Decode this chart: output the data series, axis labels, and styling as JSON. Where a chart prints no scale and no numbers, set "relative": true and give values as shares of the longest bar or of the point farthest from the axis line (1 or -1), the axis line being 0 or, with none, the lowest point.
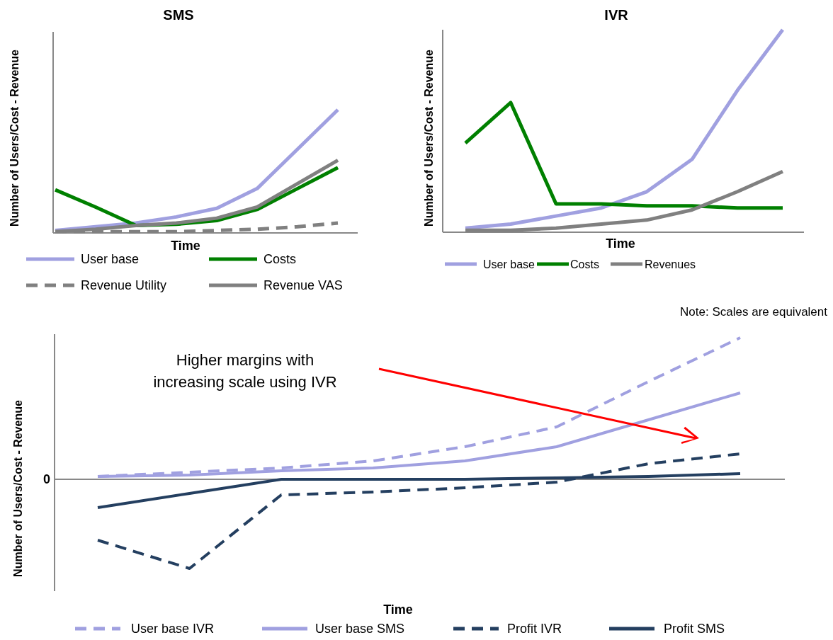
{
  "chart_data": [
    {
      "type": "line",
      "title": "SMS",
      "xlabel": "Time",
      "ylabel": "Number of Users/Cost - Revenue",
      "relative": true,
      "legend": "bottom",
      "categories": [
        null,
        null,
        null,
        null,
        null,
        null,
        null,
        null
      ],
      "series": [
        {
          "name": "User base",
          "color": "#a0a0e0",
          "values": [
            0.02,
            0.05,
            0.08,
            0.13,
            0.2,
            0.36,
            0.68,
            1
          ]
        },
        {
          "name": "Costs",
          "color": "#008000",
          "values": [
            0.35,
            0.21,
            0.06,
            0.07,
            0.1,
            0.19,
            0.36,
            0.53
          ]
        },
        {
          "name": "Revenue Utility",
          "color": "#808080",
          "line_style": "dashed",
          "values": [
            0.01,
            0.01,
            0.01,
            0.01,
            0.02,
            0.03,
            0.05,
            0.08
          ]
        },
        {
          "name": "Revenue VAS",
          "color": "#808080",
          "values": [
            0.01,
            0.03,
            0.06,
            0.08,
            0.12,
            0.21,
            0.4,
            0.59
          ]
        }
      ]
    },
    {
      "type": "line",
      "title": "IVR",
      "xlabel": "Time",
      "ylabel": "Number of Users/Cost - Revenue",
      "relative": true,
      "legend": "bottom",
      "categories": [
        null,
        null,
        null,
        null,
        null,
        null,
        null,
        null
      ],
      "series": [
        {
          "name": "User base",
          "color": "#a0a0e0",
          "values": [
            0.02,
            0.04,
            0.08,
            0.12,
            0.2,
            0.36,
            0.7,
            1
          ]
        },
        {
          "name": "Costs",
          "color": "#008000",
          "values": [
            0.44,
            0.64,
            0.14,
            0.14,
            0.13,
            0.13,
            0.12,
            0.12
          ]
        },
        {
          "name": "Revenues",
          "color": "#808080",
          "values": [
            0.01,
            0.01,
            0.02,
            0.04,
            0.06,
            0.11,
            0.2,
            0.3
          ]
        }
      ]
    },
    {
      "type": "line",
      "xlabel": "Time",
      "ylabel": "Number of Users/Cost - Revenue",
      "relative": true,
      "legend": "bottom",
      "categories": [
        null,
        null,
        null,
        null,
        null,
        null,
        null,
        null
      ],
      "annotations": [
        "Note: Scales are equivalent",
        "Higher margins with increasing scale using IVR",
        "0"
      ],
      "series": [
        {
          "name": "User base IVR",
          "color": "#a0a0e0",
          "line_style": "dashed",
          "values": [
            0.02,
            0.05,
            0.08,
            0.13,
            0.23,
            0.37,
            0.69,
            1
          ]
        },
        {
          "name": "User base SMS",
          "color": "#a0a0e0",
          "values": [
            0.02,
            0.03,
            0.06,
            0.08,
            0.13,
            0.23,
            0.42,
            0.61
          ]
        },
        {
          "name": "Profit IVR",
          "color": "#243f60",
          "line_style": "dashed",
          "values": [
            -0.43,
            -0.63,
            -0.11,
            -0.09,
            -0.06,
            -0.02,
            0.11,
            0.18
          ]
        },
        {
          "name": "Profit SMS",
          "color": "#243f60",
          "values": [
            -0.2,
            -0.1,
            0,
            0,
            0,
            0.01,
            0.02,
            0.04
          ]
        }
      ]
    }
  ]
}
